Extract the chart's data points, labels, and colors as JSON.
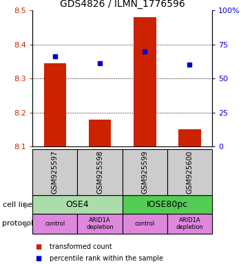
{
  "title": "GDS4826 / ILMN_1776596",
  "samples": [
    "GSM925597",
    "GSM925598",
    "GSM925599",
    "GSM925600"
  ],
  "bar_values": [
    8.345,
    8.18,
    8.48,
    8.15
  ],
  "bar_base": 8.1,
  "scatter_values": [
    8.365,
    8.345,
    8.38,
    8.34
  ],
  "ylim": [
    8.1,
    8.5
  ],
  "yticks": [
    8.1,
    8.2,
    8.3,
    8.4,
    8.5
  ],
  "right_yticks": [
    0,
    25,
    50,
    75,
    100
  ],
  "right_ylabels": [
    "0",
    "25",
    "50",
    "75",
    "100%"
  ],
  "bar_color": "#cc2200",
  "scatter_color": "#0000cc",
  "cell_groups": [
    {
      "start": 0,
      "end": 2,
      "label": "OSE4",
      "color": "#aaddaa"
    },
    {
      "start": 2,
      "end": 4,
      "label": "IOSE80pc",
      "color": "#55cc55"
    }
  ],
  "protocol_labels": [
    "control",
    "ARID1A\ndepletion",
    "control",
    "ARID1A\ndepletion"
  ],
  "protocol_color": "#dd88dd",
  "sample_box_color": "#cccccc",
  "legend_red_label": "transformed count",
  "legend_blue_label": "percentile rank within the sample",
  "cell_line_row_label": "cell line",
  "protocol_row_label": "protocol",
  "bar_width": 0.5
}
